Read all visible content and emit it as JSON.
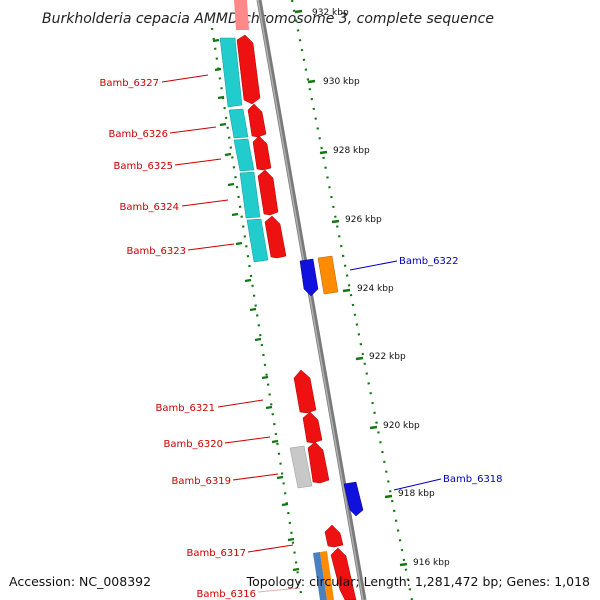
{
  "title": "Burkholderia cepacia AMMD chromosome 3, complete sequence",
  "footer": {
    "accession": "Accession: NC_008392",
    "topology": "Topology: circular; Length: 1,281,472 bp; Genes: 1,018"
  },
  "colors": {
    "forward_gene": "#ee1111",
    "reverse_gene": "#1111dd",
    "cds_band": "#22cccc",
    "reverse_orange": "#ff8c00",
    "other_gene": "#c8c8c8",
    "label_forward": "#cc0000",
    "label_reverse": "#0000bb",
    "tick_green": "#117711",
    "backbone": "#888888"
  },
  "ticks": [
    "932 kbp",
    "930 kbp",
    "928 kbp",
    "926 kbp",
    "924 kbp",
    "922 kbp",
    "920 kbp",
    "918 kbp",
    "916 kbp"
  ],
  "forward_labels": [
    "Bamb_6327",
    "Bamb_6326",
    "Bamb_6325",
    "Bamb_6324",
    "Bamb_6323",
    "Bamb_6321",
    "Bamb_6320",
    "Bamb_6319",
    "Bamb_6317",
    "Bamb_6316"
  ],
  "reverse_labels": [
    "Bamb_6322",
    "Bamb_6318"
  ]
}
